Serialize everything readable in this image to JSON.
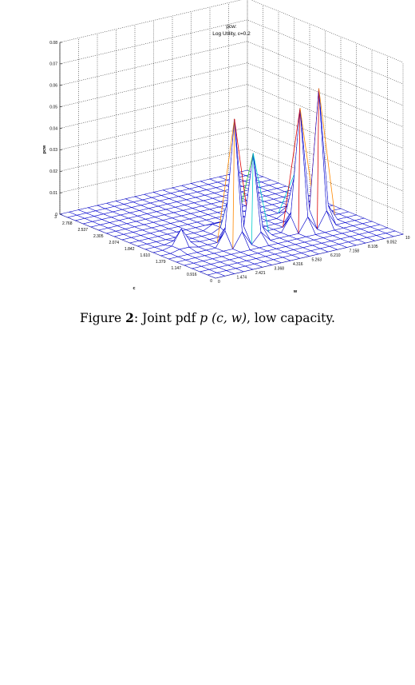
{
  "plot": {
    "title_line1": "pcw:",
    "title_line2": "Log Utility, ε=0.2",
    "zlabel": "pcw",
    "clabel": "c",
    "wlabel": "w",
    "z_ticks": [
      "0",
      "0.01",
      "0.02",
      "0.03",
      "0.04",
      "0.05",
      "0.06",
      "0.07",
      "0.08"
    ],
    "c_ticks": [
      "3",
      "2.768",
      "2.537",
      "2.305",
      "2.074",
      "1.842",
      "1.610",
      "1.379",
      "1.147",
      "0.916",
      "0"
    ],
    "w_ticks": [
      "0",
      "1.474",
      "2.421",
      "3.368",
      "4.316",
      "5.263",
      "6.210",
      "7.158",
      "8.105",
      "9.052",
      "10"
    ],
    "colors": {
      "mesh": "#0000cc",
      "face": "#ffffff",
      "cyan": "#00cccc",
      "orange": "#ff8800",
      "red": "#dd0000",
      "green": "#33cc33"
    }
  },
  "chart_data": {
    "type": "surface",
    "zlim": [
      0,
      0.08
    ],
    "grid": true,
    "peaks": [
      {
        "w": 1.474,
        "c": 1.147,
        "z": 0.008
      },
      {
        "w": 3.368,
        "c": 0.916,
        "z": 0.058
      },
      {
        "w": 4.316,
        "c": 0.916,
        "z": 0.04
      },
      {
        "w": 4.316,
        "c": 1.379,
        "z": 0.017
      },
      {
        "w": 7.158,
        "c": 0.916,
        "z": 0.056
      },
      {
        "w": 8.105,
        "c": 0.916,
        "z": 0.063
      },
      {
        "w": 8.105,
        "c": 1.379,
        "z": 0.02
      }
    ]
  },
  "caption": {
    "prefix": "Figure ",
    "number": "2",
    "text_before": ": Joint pdf ",
    "math": "p (c, w)",
    "text_after": ", low capacity."
  }
}
